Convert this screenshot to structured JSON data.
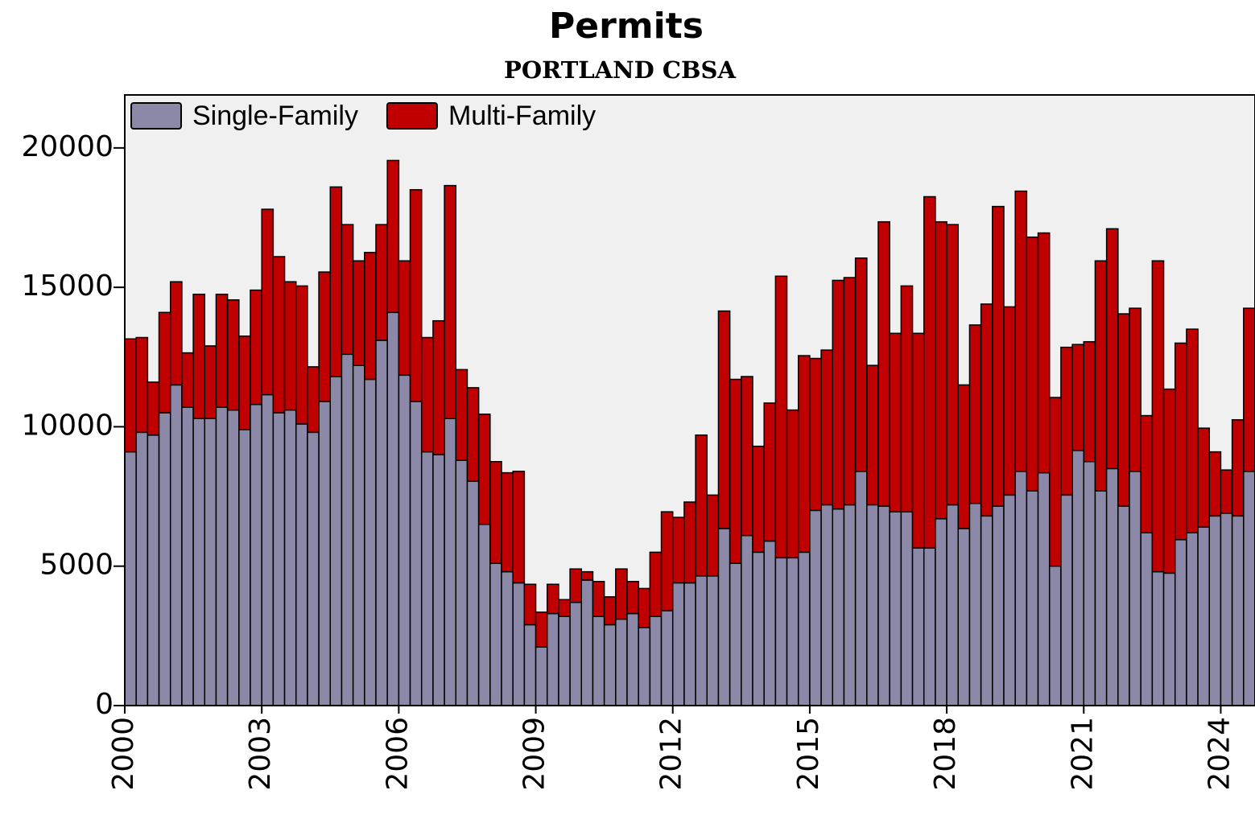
{
  "chart_data": {
    "type": "stacked-bar",
    "title": "Permits",
    "subtitle": "PORTLAND CBSA",
    "x": [
      2000,
      2000.25,
      2000.5,
      2000.75,
      2001,
      2001.25,
      2001.5,
      2001.75,
      2002,
      2002.25,
      2002.5,
      2002.75,
      2003,
      2003.25,
      2003.5,
      2003.75,
      2004,
      2004.25,
      2004.5,
      2004.75,
      2005,
      2005.25,
      2005.5,
      2005.75,
      2006,
      2006.25,
      2006.5,
      2006.75,
      2007,
      2007.25,
      2007.5,
      2007.75,
      2008,
      2008.25,
      2008.5,
      2008.75,
      2009,
      2009.25,
      2009.5,
      2009.75,
      2010,
      2010.25,
      2010.5,
      2010.75,
      2011,
      2011.25,
      2011.5,
      2011.75,
      2012,
      2012.25,
      2012.5,
      2012.75,
      2013,
      2013.25,
      2013.5,
      2013.75,
      2014,
      2014.25,
      2014.5,
      2014.75,
      2015,
      2015.25,
      2015.5,
      2015.75,
      2016,
      2016.25,
      2016.5,
      2016.75,
      2017,
      2017.25,
      2017.5,
      2017.75,
      2018,
      2018.25,
      2018.5,
      2018.75,
      2019,
      2019.25,
      2019.5,
      2019.75,
      2020,
      2020.25,
      2020.5,
      2020.75,
      2021,
      2021.25,
      2021.5,
      2021.75,
      2022,
      2022.25,
      2022.5,
      2022.75,
      2023,
      2023.25,
      2023.5,
      2023.75,
      2024,
      2024.25,
      2024.5
    ],
    "bar_width": 0.25,
    "series": [
      {
        "name": "Single-Family",
        "color": "#8c89a8",
        "values": [
          9100,
          9800,
          9700,
          10500,
          11500,
          10700,
          10300,
          10300,
          10700,
          10600,
          9900,
          10800,
          11150,
          10500,
          10600,
          10100,
          9800,
          10900,
          11800,
          12600,
          12200,
          11700,
          13100,
          14100,
          11850,
          10900,
          9100,
          9000,
          10300,
          8800,
          8050,
          6500,
          5100,
          4800,
          4400,
          2900,
          2100,
          3300,
          3200,
          3700,
          4500,
          3200,
          2900,
          3100,
          3300,
          2800,
          3200,
          3400,
          4400,
          4400,
          4650,
          4650,
          6350,
          5100,
          6100,
          5500,
          5900,
          5300,
          5300,
          5500,
          7000,
          7200,
          7050,
          7200,
          8400,
          7200,
          7150,
          6950,
          6950,
          5650,
          5650,
          6700,
          7200,
          6350,
          7250,
          6800,
          7150,
          7550,
          8400,
          7700,
          8350,
          5000,
          7550,
          9150,
          8750,
          7700,
          8500,
          7150,
          8400,
          6200,
          4800,
          4750,
          5950,
          6200,
          6400,
          6800,
          6900,
          6800,
          8400
        ]
      },
      {
        "name": "Multi-Family",
        "color": "#c00000",
        "values": [
          4050,
          3400,
          1900,
          3600,
          3700,
          1950,
          4450,
          2600,
          4050,
          3950,
          3350,
          4100,
          6650,
          5600,
          4600,
          4950,
          2350,
          4650,
          6800,
          4650,
          3750,
          4550,
          4150,
          5450,
          4100,
          7600,
          4100,
          4800,
          8350,
          3250,
          3350,
          3950,
          3650,
          3550,
          4000,
          1450,
          1250,
          1050,
          600,
          1200,
          300,
          1250,
          1000,
          1800,
          1150,
          1400,
          2300,
          3550,
          2350,
          2900,
          5050,
          2900,
          7800,
          6600,
          5700,
          3800,
          4950,
          10100,
          5300,
          7050,
          5450,
          5550,
          8200,
          8150,
          7650,
          5000,
          10200,
          6400,
          8100,
          7700,
          12600,
          10650,
          10050,
          5150,
          6400,
          7600,
          10750,
          6750,
          10050,
          9100,
          8600,
          6050,
          5300,
          3800,
          4300,
          8250,
          8600,
          6900,
          5850,
          4200,
          11150,
          6600,
          7050,
          7300,
          3550,
          2300,
          1550,
          3450,
          5850
        ]
      }
    ],
    "ylim": [
      0,
      21900
    ],
    "yticks": [
      0,
      5000,
      10000,
      15000,
      20000
    ],
    "xlim": [
      2000,
      2024.75
    ],
    "xticks": [
      2000,
      2003,
      2006,
      2009,
      2012,
      2015,
      2018,
      2021,
      2024
    ],
    "legend": "top-left"
  }
}
